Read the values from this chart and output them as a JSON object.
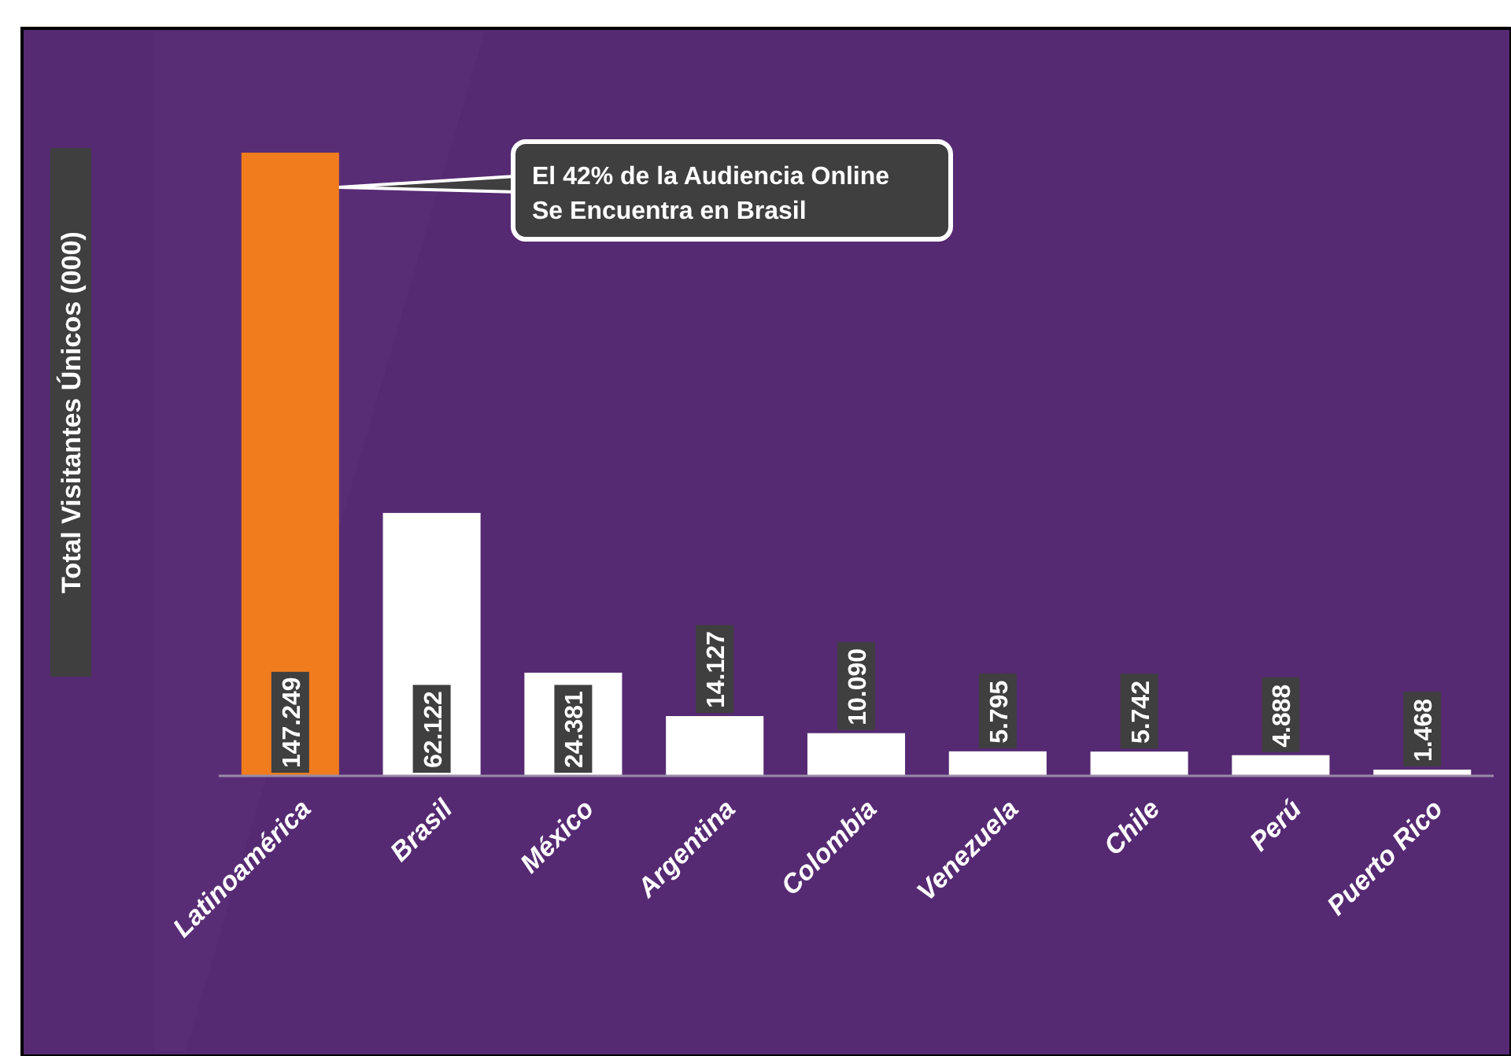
{
  "chart_data": {
    "type": "bar",
    "ylabel": "Total Visitantes Únicos (000)",
    "categories": [
      "Latinoamérica",
      "Brasil",
      "México",
      "Argentina",
      "Colombia",
      "Venezuela",
      "Chile",
      "Perú",
      "Puerto Rico"
    ],
    "values": [
      147249,
      62122,
      24381,
      14127,
      10090,
      5795,
      5742,
      4888,
      1468
    ],
    "value_labels": [
      "147.249",
      "62.122",
      "24.381",
      "14.127",
      "10.090",
      "5.795",
      "5.742",
      "4.888",
      "1.468"
    ],
    "colors": [
      "#f07c1e",
      "#ffffff",
      "#ffffff",
      "#ffffff",
      "#ffffff",
      "#ffffff",
      "#ffffff",
      "#ffffff",
      "#ffffff"
    ],
    "annotations": [
      "El 42% de la Audiencia Online\nSe Encuentra en Brasil"
    ]
  }
}
